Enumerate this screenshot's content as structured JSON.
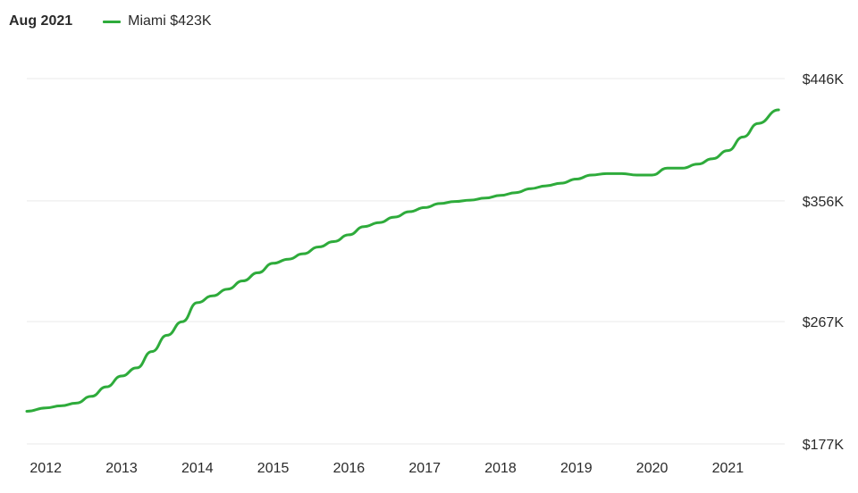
{
  "header": {
    "date": "Aug 2021",
    "legend_label": "Miami $423K"
  },
  "colors": {
    "line": "#2eab3b",
    "grid": "#e9e9e9",
    "text": "#2a2a2a"
  },
  "chart_data": {
    "type": "line",
    "title": "",
    "xlabel": "",
    "ylabel": "",
    "x_tick_labels": [
      "2012",
      "2013",
      "2014",
      "2015",
      "2016",
      "2017",
      "2018",
      "2019",
      "2020",
      "2021"
    ],
    "y_tick_labels": [
      "$177K",
      "$267K",
      "$356K",
      "$446K"
    ],
    "y_tick_values": [
      177,
      267,
      356,
      446
    ],
    "xlim": [
      2011.75,
      2021.75
    ],
    "ylim": [
      177,
      446
    ],
    "grid": true,
    "y_axis_side": "right",
    "series": [
      {
        "name": "Miami",
        "x": [
          2011.75,
          2012.0,
          2012.2,
          2012.4,
          2012.6,
          2012.8,
          2013.0,
          2013.2,
          2013.4,
          2013.6,
          2013.8,
          2014.0,
          2014.2,
          2014.4,
          2014.6,
          2014.8,
          2015.0,
          2015.2,
          2015.4,
          2015.6,
          2015.8,
          2016.0,
          2016.2,
          2016.4,
          2016.6,
          2016.8,
          2017.0,
          2017.2,
          2017.4,
          2017.6,
          2017.8,
          2018.0,
          2018.2,
          2018.4,
          2018.6,
          2018.8,
          2019.0,
          2019.2,
          2019.4,
          2019.6,
          2019.8,
          2020.0,
          2020.2,
          2020.4,
          2020.6,
          2020.8,
          2021.0,
          2021.2,
          2021.4,
          2021.67
        ],
        "values": [
          201,
          203.5,
          205,
          207,
          212,
          219,
          227,
          233,
          245,
          257,
          267,
          281,
          286,
          291,
          297,
          303,
          310,
          313,
          317,
          322,
          326,
          331,
          337,
          340,
          344,
          348,
          351,
          354,
          355.5,
          356.5,
          358,
          360,
          362,
          365,
          367,
          369,
          372,
          375,
          376,
          376,
          375,
          375,
          380,
          380,
          383,
          387,
          393,
          403,
          413,
          423
        ]
      }
    ]
  }
}
